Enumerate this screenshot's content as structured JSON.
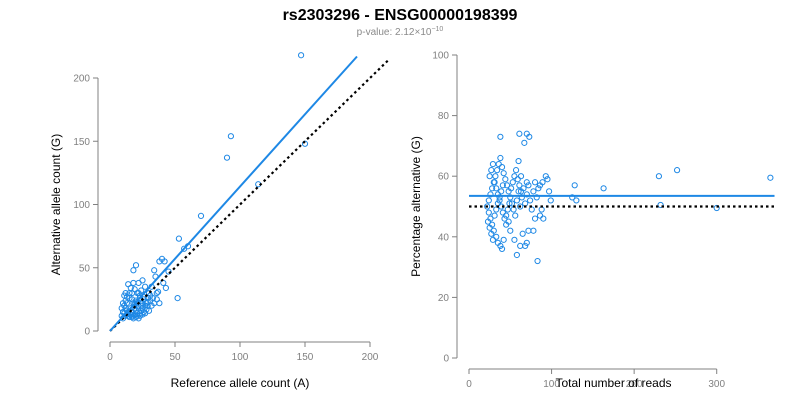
{
  "title": "rs2303296 - ENSG00000198399",
  "subtitle": {
    "prefix": "p-value: 2.12×10",
    "exponent": "−10"
  },
  "colors": {
    "point": "#1e88e5",
    "fit": "#1e88e5",
    "reference": "#000000",
    "axis": "#808080"
  },
  "chart_data": [
    {
      "type": "scatter",
      "xlabel": "Reference allele count (A)",
      "ylabel": "Alternative allele count (G)",
      "xlim": [
        0,
        200
      ],
      "ylim": [
        0,
        200
      ],
      "xticks": [
        0,
        50,
        100,
        150,
        200
      ],
      "yticks": [
        0,
        50,
        100,
        150,
        200
      ],
      "fit_line": {
        "x": [
          0,
          190
        ],
        "y": [
          0,
          217
        ]
      },
      "reference_line": {
        "x": [
          0,
          215
        ],
        "y": [
          0,
          215
        ]
      },
      "points": [
        [
          147,
          218
        ],
        [
          93,
          154
        ],
        [
          90,
          137
        ],
        [
          150,
          148
        ],
        [
          114,
          116
        ],
        [
          70,
          91
        ],
        [
          53,
          73
        ],
        [
          60,
          67
        ],
        [
          57,
          65
        ],
        [
          52,
          26
        ],
        [
          40,
          57
        ],
        [
          38,
          55
        ],
        [
          42,
          55
        ],
        [
          45,
          47
        ],
        [
          34,
          48
        ],
        [
          35,
          43
        ],
        [
          41,
          38
        ],
        [
          43,
          34
        ],
        [
          37,
          31
        ],
        [
          32,
          35
        ],
        [
          20,
          52
        ],
        [
          18,
          48
        ],
        [
          25,
          40
        ],
        [
          27,
          35
        ],
        [
          22,
          38
        ],
        [
          24,
          32
        ],
        [
          30,
          30
        ],
        [
          29,
          26
        ],
        [
          31,
          24
        ],
        [
          26,
          27
        ],
        [
          28,
          22
        ],
        [
          14,
          37
        ],
        [
          16,
          34
        ],
        [
          12,
          30
        ],
        [
          11,
          28
        ],
        [
          15,
          26
        ],
        [
          17,
          25
        ],
        [
          13,
          22
        ],
        [
          18,
          22
        ],
        [
          19,
          21
        ],
        [
          20,
          24
        ],
        [
          21,
          23
        ],
        [
          22,
          20
        ],
        [
          23,
          26
        ],
        [
          24,
          20
        ],
        [
          12,
          18
        ],
        [
          13,
          16
        ],
        [
          14,
          15
        ],
        [
          15,
          14
        ],
        [
          16,
          18
        ],
        [
          17,
          15
        ],
        [
          18,
          12
        ],
        [
          19,
          18
        ],
        [
          20,
          16
        ],
        [
          21,
          14
        ],
        [
          22,
          18
        ],
        [
          23,
          14
        ],
        [
          24,
          16
        ],
        [
          25,
          18
        ],
        [
          26,
          15
        ],
        [
          12,
          12
        ],
        [
          13,
          13
        ],
        [
          14,
          12
        ],
        [
          15,
          11
        ],
        [
          16,
          13
        ],
        [
          17,
          11
        ],
        [
          18,
          10
        ],
        [
          19,
          13
        ],
        [
          20,
          11
        ],
        [
          21,
          12
        ],
        [
          22,
          10
        ],
        [
          23,
          12
        ],
        [
          25,
          13
        ],
        [
          27,
          14
        ],
        [
          28,
          17
        ],
        [
          11,
          20
        ],
        [
          12,
          24
        ],
        [
          13,
          27
        ],
        [
          10,
          22
        ],
        [
          9,
          18
        ],
        [
          10,
          15
        ],
        [
          11,
          14
        ],
        [
          9,
          12
        ],
        [
          10,
          10
        ],
        [
          15,
          30
        ],
        [
          19,
          33
        ],
        [
          21,
          30
        ],
        [
          23,
          28
        ],
        [
          26,
          25
        ],
        [
          29,
          20
        ],
        [
          30,
          16
        ],
        [
          32,
          20
        ],
        [
          34,
          22
        ],
        [
          36,
          25
        ],
        [
          18,
          38
        ],
        [
          17,
          30
        ],
        [
          22,
          30
        ],
        [
          24,
          24
        ],
        [
          25,
          22
        ],
        [
          27,
          20
        ],
        [
          29,
          23
        ],
        [
          31,
          28
        ],
        [
          33,
          26
        ],
        [
          36,
          30
        ],
        [
          38,
          22
        ]
      ]
    },
    {
      "type": "scatter",
      "xlabel": "Total number of reads",
      "ylabel": "Percentage alternative (G)",
      "xlim": [
        0,
        350
      ],
      "ylim": [
        0,
        100
      ],
      "xticks": [
        0,
        100,
        200,
        300
      ],
      "yticks": [
        0,
        20,
        40,
        60,
        80,
        100
      ],
      "fit_line": {
        "x": [
          0,
          370
        ],
        "y": [
          53.5,
          53.5
        ]
      },
      "reference_line": {
        "x": [
          0,
          370
        ],
        "y": [
          50,
          50
        ]
      },
      "points": [
        [
          365,
          59.5
        ],
        [
          252,
          62
        ],
        [
          230,
          60
        ],
        [
          232,
          50.5
        ],
        [
          300,
          49.5
        ],
        [
          163,
          56
        ],
        [
          128,
          57
        ],
        [
          130,
          52
        ],
        [
          125,
          53
        ],
        [
          38,
          73
        ],
        [
          61,
          74
        ],
        [
          67,
          71
        ],
        [
          70,
          74
        ],
        [
          73,
          73
        ],
        [
          60,
          65
        ],
        [
          63,
          60
        ],
        [
          70,
          58
        ],
        [
          89,
          58
        ],
        [
          93,
          60
        ],
        [
          86,
          57
        ],
        [
          86,
          47
        ],
        [
          88,
          49
        ],
        [
          90,
          46
        ],
        [
          83,
          32
        ],
        [
          80,
          46
        ],
        [
          78,
          42
        ],
        [
          72,
          42
        ],
        [
          70,
          38
        ],
        [
          68,
          37
        ],
        [
          65,
          41
        ],
        [
          62,
          37
        ],
        [
          58,
          34
        ],
        [
          55,
          39
        ],
        [
          50,
          42
        ],
        [
          48,
          45
        ],
        [
          45,
          47
        ],
        [
          42,
          39
        ],
        [
          40,
          36
        ],
        [
          38,
          37
        ],
        [
          35,
          38
        ],
        [
          33,
          40
        ],
        [
          30,
          42
        ],
        [
          28,
          44
        ],
        [
          26,
          46
        ],
        [
          24,
          48
        ],
        [
          22,
          50
        ],
        [
          24,
          52
        ],
        [
          26,
          54
        ],
        [
          28,
          56
        ],
        [
          30,
          58
        ],
        [
          32,
          60
        ],
        [
          34,
          62
        ],
        [
          36,
          64
        ],
        [
          38,
          66
        ],
        [
          40,
          63
        ],
        [
          42,
          61
        ],
        [
          44,
          59
        ],
        [
          46,
          57
        ],
        [
          48,
          55
        ],
        [
          50,
          53
        ],
        [
          52,
          51
        ],
        [
          54,
          49
        ],
        [
          56,
          47
        ],
        [
          58,
          52
        ],
        [
          60,
          55
        ],
        [
          62,
          50
        ],
        [
          64,
          53
        ],
        [
          66,
          56
        ],
        [
          68,
          51
        ],
        [
          70,
          54
        ],
        [
          72,
          57
        ],
        [
          74,
          52
        ],
        [
          76,
          49
        ],
        [
          78,
          55
        ],
        [
          80,
          58
        ],
        [
          82,
          53
        ],
        [
          84,
          56
        ],
        [
          95,
          59
        ],
        [
          97,
          55
        ],
        [
          99,
          52
        ],
        [
          25,
          60
        ],
        [
          27,
          62
        ],
        [
          29,
          64
        ],
        [
          31,
          58
        ],
        [
          33,
          56
        ],
        [
          35,
          54
        ],
        [
          37,
          52
        ],
        [
          39,
          50
        ],
        [
          41,
          48
        ],
        [
          43,
          46
        ],
        [
          45,
          44
        ],
        [
          47,
          49
        ],
        [
          49,
          51
        ],
        [
          51,
          56
        ],
        [
          53,
          58
        ],
        [
          55,
          60
        ],
        [
          57,
          62
        ],
        [
          59,
          59
        ],
        [
          61,
          57
        ],
        [
          63,
          55
        ],
        [
          23,
          45
        ],
        [
          25,
          43
        ],
        [
          27,
          41
        ],
        [
          29,
          39
        ],
        [
          31,
          47
        ],
        [
          33,
          49
        ],
        [
          35,
          51
        ],
        [
          37,
          53
        ],
        [
          39,
          55
        ],
        [
          41,
          57
        ]
      ]
    }
  ]
}
